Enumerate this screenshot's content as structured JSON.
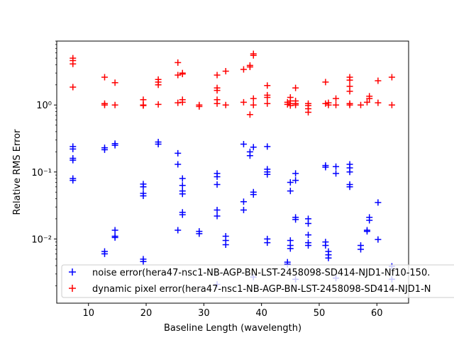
{
  "chart_data": {
    "type": "scatter",
    "title": "",
    "xlabel": "Baseline Length (wavelength)",
    "ylabel": "Relative RMS Error",
    "xlim": [
      4.5,
      65.5
    ],
    "ylim": [
      0.0011,
      9.0
    ],
    "yscale": "log",
    "grid": false,
    "legend_position": "lower-left",
    "xticks": [
      10,
      20,
      30,
      40,
      50,
      60
    ],
    "xtick_labels": [
      "10",
      "20",
      "30",
      "40",
      "50",
      "60"
    ],
    "yticks": [
      0.01,
      0.1,
      1
    ],
    "ytick_labels": [
      "10⁻²",
      "10⁻¹",
      "10⁰"
    ],
    "marker": "+",
    "series": [
      {
        "name": "noise error(hera47-nsc1-NB-AGP-BN-LST-2458098-SD414-NJD1-Nf10-150.",
        "color": "#0000ff",
        "points": [
          [
            7.3,
            0.24
          ],
          [
            7.3,
            0.22
          ],
          [
            7.3,
            0.16
          ],
          [
            7.3,
            0.15
          ],
          [
            7.3,
            0.08
          ],
          [
            7.3,
            0.075
          ],
          [
            12.8,
            0.23
          ],
          [
            12.8,
            0.215
          ],
          [
            12.8,
            0.0065
          ],
          [
            12.8,
            0.006
          ],
          [
            14.6,
            0.265
          ],
          [
            14.6,
            0.25
          ],
          [
            14.6,
            0.0135
          ],
          [
            14.6,
            0.011
          ],
          [
            14.6,
            0.0105
          ],
          [
            19.5,
            0.066
          ],
          [
            19.5,
            0.06
          ],
          [
            19.5,
            0.048
          ],
          [
            19.5,
            0.044
          ],
          [
            19.5,
            0.005
          ],
          [
            19.5,
            0.0046
          ],
          [
            22.1,
            0.28
          ],
          [
            22.1,
            0.26
          ],
          [
            25.5,
            0.19
          ],
          [
            25.5,
            0.13
          ],
          [
            25.5,
            0.0135
          ],
          [
            26.3,
            0.08
          ],
          [
            26.3,
            0.063
          ],
          [
            26.3,
            0.052
          ],
          [
            26.3,
            0.047
          ],
          [
            26.3,
            0.025
          ],
          [
            26.3,
            0.023
          ],
          [
            29.2,
            0.013
          ],
          [
            29.2,
            0.012
          ],
          [
            32.3,
            0.095
          ],
          [
            32.3,
            0.085
          ],
          [
            32.3,
            0.065
          ],
          [
            32.3,
            0.027
          ],
          [
            32.3,
            0.022
          ],
          [
            32.3,
            0.0021
          ],
          [
            33.8,
            0.011
          ],
          [
            33.8,
            0.0095
          ],
          [
            33.8,
            0.0082
          ],
          [
            36.9,
            0.26
          ],
          [
            36.9,
            0.036
          ],
          [
            36.9,
            0.027
          ],
          [
            38.0,
            0.2
          ],
          [
            38.0,
            0.175
          ],
          [
            38.6,
            0.235
          ],
          [
            38.6,
            0.05
          ],
          [
            38.6,
            0.046
          ],
          [
            38.6,
            0.0027
          ],
          [
            41.0,
            0.24
          ],
          [
            41.0,
            0.11
          ],
          [
            41.0,
            0.1
          ],
          [
            41.0,
            0.092
          ],
          [
            41.0,
            0.01
          ],
          [
            41.0,
            0.0088
          ],
          [
            44.5,
            0.0045
          ],
          [
            44.5,
            0.0042
          ],
          [
            45.0,
            0.07
          ],
          [
            45.0,
            0.052
          ],
          [
            45.0,
            0.0095
          ],
          [
            45.0,
            0.008
          ],
          [
            45.0,
            0.0072
          ],
          [
            45.9,
            0.095
          ],
          [
            45.9,
            0.075
          ],
          [
            45.9,
            0.021
          ],
          [
            45.9,
            0.0195
          ],
          [
            45.9,
            0.0025
          ],
          [
            48.1,
            0.02
          ],
          [
            48.1,
            0.017
          ],
          [
            48.1,
            0.0115
          ],
          [
            48.1,
            0.0088
          ],
          [
            48.1,
            0.008
          ],
          [
            51.1,
            0.125
          ],
          [
            51.1,
            0.118
          ],
          [
            51.1,
            0.009
          ],
          [
            51.1,
            0.008
          ],
          [
            51.6,
            0.0065
          ],
          [
            51.6,
            0.0058
          ],
          [
            51.6,
            0.0052
          ],
          [
            52.9,
            0.12
          ],
          [
            52.9,
            0.095
          ],
          [
            52.9,
            0.0026
          ],
          [
            55.3,
            0.13
          ],
          [
            55.3,
            0.115
          ],
          [
            55.3,
            0.1
          ],
          [
            55.3,
            0.065
          ],
          [
            55.3,
            0.06
          ],
          [
            57.2,
            0.008
          ],
          [
            57.2,
            0.007
          ],
          [
            58.3,
            0.0135
          ],
          [
            58.3,
            0.013
          ],
          [
            58.7,
            0.021
          ],
          [
            58.7,
            0.019
          ],
          [
            60.2,
            0.035
          ],
          [
            60.2,
            0.0098
          ],
          [
            62.6,
            0.0039
          ],
          [
            62.6,
            0.0025
          ]
        ]
      },
      {
        "name": "dynamic pixel error(hera47-nsc1-NB-AGP-BN-LST-2458098-SD414-NJD1-N",
        "color": "#ff0000",
        "points": [
          [
            7.3,
            5.0
          ],
          [
            7.3,
            4.6
          ],
          [
            7.3,
            4.1
          ],
          [
            7.3,
            1.85
          ],
          [
            12.8,
            2.6
          ],
          [
            12.8,
            1.05
          ],
          [
            12.8,
            1.0
          ],
          [
            14.6,
            2.15
          ],
          [
            14.6,
            1.0
          ],
          [
            19.5,
            1.2
          ],
          [
            19.5,
            1.0
          ],
          [
            19.5,
            0.98
          ],
          [
            22.1,
            2.4
          ],
          [
            22.1,
            2.2
          ],
          [
            22.1,
            2.0
          ],
          [
            22.1,
            1.02
          ],
          [
            25.5,
            4.3
          ],
          [
            25.5,
            2.8
          ],
          [
            25.5,
            1.08
          ],
          [
            26.3,
            3.0
          ],
          [
            26.3,
            2.9
          ],
          [
            26.3,
            1.2
          ],
          [
            26.3,
            1.1
          ],
          [
            29.2,
            1.0
          ],
          [
            29.2,
            0.95
          ],
          [
            32.3,
            2.8
          ],
          [
            32.3,
            1.8
          ],
          [
            32.3,
            1.65
          ],
          [
            32.3,
            1.2
          ],
          [
            32.3,
            1.05
          ],
          [
            33.8,
            3.2
          ],
          [
            33.8,
            1.0
          ],
          [
            36.9,
            3.4
          ],
          [
            36.9,
            1.1
          ],
          [
            38.0,
            3.9
          ],
          [
            38.0,
            3.7
          ],
          [
            38.0,
            0.72
          ],
          [
            38.6,
            5.8
          ],
          [
            38.6,
            5.5
          ],
          [
            38.6,
            1.25
          ],
          [
            38.6,
            1.0
          ],
          [
            41.0,
            1.95
          ],
          [
            41.0,
            1.4
          ],
          [
            41.0,
            1.3
          ],
          [
            41.0,
            1.05
          ],
          [
            44.5,
            1.1
          ],
          [
            44.5,
            1.02
          ],
          [
            45.0,
            1.3
          ],
          [
            45.0,
            1.15
          ],
          [
            45.0,
            1.05
          ],
          [
            45.0,
            0.98
          ],
          [
            45.9,
            1.8
          ],
          [
            45.9,
            1.15
          ],
          [
            45.9,
            1.05
          ],
          [
            45.9,
            1.0
          ],
          [
            48.1,
            1.05
          ],
          [
            48.1,
            0.98
          ],
          [
            48.1,
            0.88
          ],
          [
            48.1,
            0.78
          ],
          [
            51.1,
            2.2
          ],
          [
            51.1,
            1.05
          ],
          [
            51.6,
            1.08
          ],
          [
            51.6,
            1.0
          ],
          [
            52.9,
            1.25
          ],
          [
            52.9,
            1.0
          ],
          [
            55.3,
            2.6
          ],
          [
            55.3,
            2.35
          ],
          [
            55.3,
            1.9
          ],
          [
            55.3,
            1.6
          ],
          [
            55.3,
            1.05
          ],
          [
            55.3,
            1.0
          ],
          [
            57.2,
            1.0
          ],
          [
            58.3,
            1.1
          ],
          [
            58.7,
            1.35
          ],
          [
            58.7,
            1.25
          ],
          [
            60.2,
            2.3
          ],
          [
            60.2,
            1.08
          ],
          [
            62.6,
            2.6
          ],
          [
            62.6,
            1.0
          ]
        ]
      }
    ]
  }
}
